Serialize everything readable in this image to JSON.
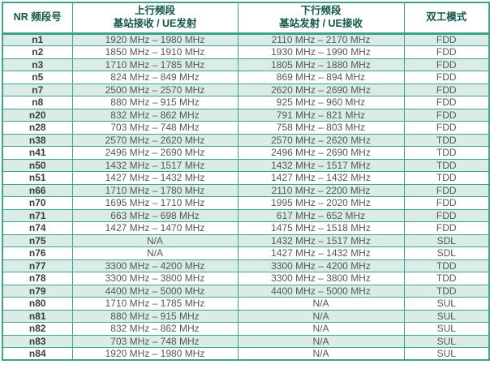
{
  "colors": {
    "border_teal": "#3fa28b",
    "header_text": "#12574a",
    "cell_text": "#575757",
    "band_text": "#3d3d3d",
    "row_alt_bg": "#d9ece6",
    "row_bg": "#ffffff"
  },
  "table": {
    "columns": {
      "band": {
        "label": "NR 频段号"
      },
      "uplink": {
        "label_line1": "上行频段",
        "label_line2": "基站接收 / UE发射"
      },
      "downlink": {
        "label_line1": "下行频段",
        "label_line2": "基站发射 / UE接收"
      },
      "duplex": {
        "label": "双工模式"
      }
    },
    "rows": [
      {
        "band": "n1",
        "uplink": "1920 MHz – 1980 MHz",
        "downlink": "2110 MHz – 2170 MHz",
        "duplex": "FDD"
      },
      {
        "band": "n2",
        "uplink": "1850 MHz – 1910 MHz",
        "downlink": "1930 MHz – 1990 MHz",
        "duplex": "FDD"
      },
      {
        "band": "n3",
        "uplink": "1710 MHz – 1785 MHz",
        "downlink": "1805 MHz – 1880 MHz",
        "duplex": "FDD"
      },
      {
        "band": "n5",
        "uplink": "824 MHz – 849 MHz",
        "downlink": "869 MHz – 894 MHz",
        "duplex": "FDD"
      },
      {
        "band": "n7",
        "uplink": "2500 MHz – 2570 MHz",
        "downlink": "2620 MHz – 2690 MHz",
        "duplex": "FDD"
      },
      {
        "band": "n8",
        "uplink": "880 MHz – 915 MHz",
        "downlink": "925 MHz – 960 MHz",
        "duplex": "FDD"
      },
      {
        "band": "n20",
        "uplink": "832 MHz – 862 MHz",
        "downlink": "791 MHz – 821 MHz",
        "duplex": "FDD"
      },
      {
        "band": "n28",
        "uplink": "703 MHz – 748 MHz",
        "downlink": "758 MHz – 803 MHz",
        "duplex": "FDD"
      },
      {
        "band": "n38",
        "uplink": "2570 MHz – 2620 MHz",
        "downlink": "2570 MHz – 2620 MHz",
        "duplex": "TDD"
      },
      {
        "band": "n41",
        "uplink": "2496 MHz – 2690 MHz",
        "downlink": "2496 MHz – 2690 MHz",
        "duplex": "TDD"
      },
      {
        "band": "n50",
        "uplink": "1432 MHz – 1517 MHz",
        "downlink": "1432 MHz – 1517 MHz",
        "duplex": "TDD"
      },
      {
        "band": "n51",
        "uplink": "1427 MHz – 1432 MHz",
        "downlink": "1427 MHz – 1432 MHz",
        "duplex": "TDD"
      },
      {
        "band": "n66",
        "uplink": "1710 MHz – 1780 MHz",
        "downlink": "2110 MHz – 2200 MHz",
        "duplex": "FDD"
      },
      {
        "band": "n70",
        "uplink": "1695 MHz – 1710 MHz",
        "downlink": "1995 MHz – 2020 MHz",
        "duplex": "FDD"
      },
      {
        "band": "n71",
        "uplink": "663 MHz – 698 MHz",
        "downlink": "617 MHz – 652 MHz",
        "duplex": "FDD"
      },
      {
        "band": "n74",
        "uplink": "1427 MHz – 1470 MHz",
        "downlink": "1475 MHz – 1518 MHz",
        "duplex": "FDD"
      },
      {
        "band": "n75",
        "uplink": "N/A",
        "downlink": "1432 MHz – 1517 MHz",
        "duplex": "SDL"
      },
      {
        "band": "n76",
        "uplink": "N/A",
        "downlink": "1427 MHz – 1432 MHz",
        "duplex": "SDL"
      },
      {
        "band": "n77",
        "uplink": "3300 MHz – 4200 MHz",
        "downlink": "3300 MHz – 4200 MHz",
        "duplex": "TDD"
      },
      {
        "band": "n78",
        "uplink": "3300 MHz – 3800 MHz",
        "downlink": "3300 MHz – 3800 MHz",
        "duplex": "TDD"
      },
      {
        "band": "n79",
        "uplink": "4400 MHz – 5000 MHz",
        "downlink": "4400 MHz – 5000 MHz",
        "duplex": "TDD"
      },
      {
        "band": "n80",
        "uplink": "1710 MHz – 1785 MHz",
        "downlink": "N/A",
        "duplex": "SUL"
      },
      {
        "band": "n81",
        "uplink": "880 MHz – 915 MHz",
        "downlink": "N/A",
        "duplex": "SUL"
      },
      {
        "band": "n82",
        "uplink": "832 MHz – 862 MHz",
        "downlink": "N/A",
        "duplex": "SUL"
      },
      {
        "band": "n83",
        "uplink": "703 MHz – 748 MHz",
        "downlink": "N/A",
        "duplex": "SUL"
      },
      {
        "band": "n84",
        "uplink": "1920 MHz – 1980 MHz",
        "downlink": "N/A",
        "duplex": "SUL"
      }
    ]
  }
}
